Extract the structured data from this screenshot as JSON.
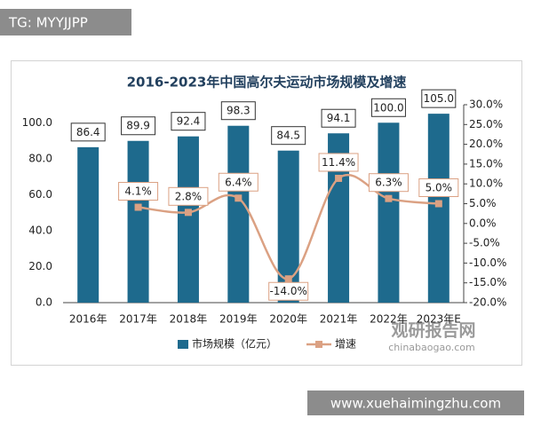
{
  "header_tag": "TG: MYYJJPP",
  "footer_url": "www.xuehaimingzhu.com",
  "watermark": {
    "name": "观研报告网",
    "site": "chinabaogao.com"
  },
  "chart_data": {
    "type": "bar-line",
    "title": "2016-2023年中国高尔夫运动市场规模及增速",
    "categories": [
      "2016年",
      "2017年",
      "2018年",
      "2019年",
      "2020年",
      "2021年",
      "2022年",
      "2023年E"
    ],
    "series": [
      {
        "name": "市场规模（亿元）",
        "type": "bar",
        "color": "#1e6a8d",
        "values": [
          86.4,
          89.9,
          92.4,
          98.3,
          84.5,
          94.1,
          100.0,
          105.0
        ],
        "value_labels": [
          "86.4",
          "89.9",
          "92.4",
          "98.3",
          "84.5",
          "94.1",
          "100.0",
          "105.0"
        ]
      },
      {
        "name": "增速",
        "type": "line",
        "axis": "y2",
        "color": "#dba183",
        "values": [
          null,
          4.1,
          2.8,
          6.4,
          -14.0,
          11.4,
          6.3,
          5.0
        ],
        "value_labels": [
          null,
          "4.1%",
          "2.8%",
          "6.4%",
          "-14.0%",
          "11.4%",
          "6.3%",
          "5.0%"
        ]
      }
    ],
    "ylim": [
      0,
      110
    ],
    "yticks": [
      {
        "value": 0,
        "label": "0.0"
      },
      {
        "value": 20,
        "label": "20.0"
      },
      {
        "value": 40,
        "label": "40.0"
      },
      {
        "value": 60,
        "label": "60.0"
      },
      {
        "value": 80,
        "label": "80.0"
      },
      {
        "value": 100,
        "label": "100.0"
      }
    ],
    "y2lim": [
      -20,
      30
    ],
    "y2ticks": [
      {
        "value": 30,
        "label": "30.0%"
      },
      {
        "value": 25,
        "label": "25.0%"
      },
      {
        "value": 20,
        "label": "20.0%"
      },
      {
        "value": 15,
        "label": "15.0%"
      },
      {
        "value": 10,
        "label": "10.0%"
      },
      {
        "value": 5,
        "label": "5.0%"
      },
      {
        "value": 0,
        "label": "0.0%"
      },
      {
        "value": -5,
        "label": "-5.0%"
      },
      {
        "value": -10,
        "label": "-10.0%"
      },
      {
        "value": -15,
        "label": "-15.0%"
      },
      {
        "value": -20,
        "label": "-20.0%"
      }
    ],
    "grid": false
  }
}
